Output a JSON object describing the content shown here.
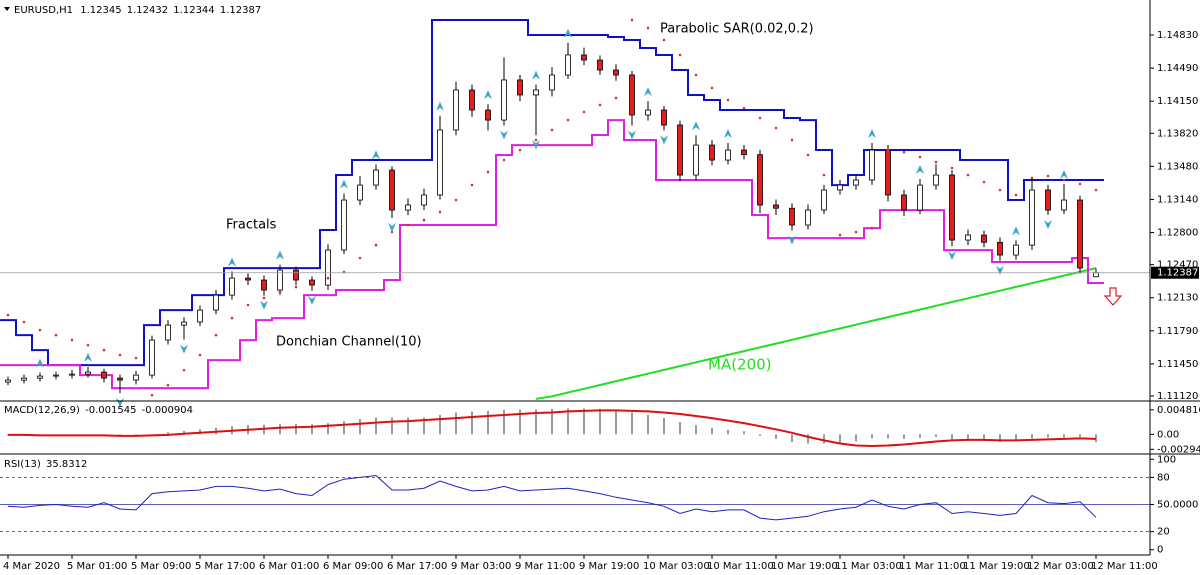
{
  "chart_data": [
    {
      "type": "candlestick",
      "symbol": "EURUSD,H1",
      "x_labels": [
        "4 Mar 2020",
        "5 Mar 01:00",
        "5 Mar 09:00",
        "5 Mar 17:00",
        "6 Mar 01:00",
        "6 Mar 09:00",
        "6 Mar 17:00",
        "9 Mar 03:00",
        "9 Mar 11:00",
        "9 Mar 19:00",
        "10 Mar 03:00",
        "10 Mar 11:00",
        "10 Mar 19:00",
        "11 Mar 03:00",
        "11 Mar 11:00",
        "11 Mar 19:00",
        "12 Mar 03:00",
        "12 Mar 11:00"
      ],
      "candles": [
        [
          1.11264,
          1.1132,
          1.1123,
          1.11284
        ],
        [
          1.11284,
          1.1134,
          1.1125,
          1.11304
        ],
        [
          1.11304,
          1.1136,
          1.1127,
          1.11325
        ],
        [
          1.11325,
          1.1137,
          1.1129,
          1.11335
        ],
        [
          1.11335,
          1.1139,
          1.113,
          1.11345
        ],
        [
          1.11345,
          1.1142,
          1.1131,
          1.11366
        ],
        [
          1.11366,
          1.114,
          1.1126,
          1.11304
        ],
        [
          1.11304,
          1.1134,
          1.1115,
          1.11284
        ],
        [
          1.11284,
          1.1138,
          1.1124,
          1.11335
        ],
        [
          1.11335,
          1.1174,
          1.113,
          1.11695
        ],
        [
          1.11695,
          1.119,
          1.1165,
          1.11849
        ],
        [
          1.11849,
          1.1193,
          1.117,
          1.1188
        ],
        [
          1.1188,
          1.1205,
          1.1184,
          1.12003
        ],
        [
          1.12003,
          1.1221,
          1.1196,
          1.12157
        ],
        [
          1.12157,
          1.124,
          1.1211,
          1.12332
        ],
        [
          1.12332,
          1.1238,
          1.1226,
          1.12312
        ],
        [
          1.12312,
          1.1236,
          1.1215,
          1.12209
        ],
        [
          1.12209,
          1.1247,
          1.1216,
          1.12414
        ],
        [
          1.12414,
          1.1245,
          1.1226,
          1.12312
        ],
        [
          1.12312,
          1.1235,
          1.122,
          1.1226
        ],
        [
          1.1226,
          1.1268,
          1.1221,
          1.1262
        ],
        [
          1.1262,
          1.132,
          1.1258,
          1.13134
        ],
        [
          1.13134,
          1.1338,
          1.1308,
          1.13288
        ],
        [
          1.13288,
          1.135,
          1.1324,
          1.13442
        ],
        [
          1.13442,
          1.1348,
          1.1295,
          1.13031
        ],
        [
          1.13031,
          1.1315,
          1.1298,
          1.13083
        ],
        [
          1.13083,
          1.1325,
          1.1303,
          1.13186
        ],
        [
          1.13186,
          1.14,
          1.1314,
          1.13854
        ],
        [
          1.13854,
          1.1435,
          1.138,
          1.14265
        ],
        [
          1.14265,
          1.1432,
          1.1399,
          1.14059
        ],
        [
          1.14059,
          1.1412,
          1.1385,
          1.13956
        ],
        [
          1.13956,
          1.146,
          1.139,
          1.14368
        ],
        [
          1.14368,
          1.1442,
          1.1415,
          1.14214
        ],
        [
          1.14214,
          1.1432,
          1.138,
          1.14265
        ],
        [
          1.14265,
          1.145,
          1.142,
          1.14419
        ],
        [
          1.14419,
          1.1475,
          1.1438,
          1.14625
        ],
        [
          1.14625,
          1.147,
          1.1452,
          1.14573
        ],
        [
          1.14573,
          1.1462,
          1.1442,
          1.1447
        ],
        [
          1.1447,
          1.1453,
          1.1436,
          1.14419
        ],
        [
          1.14419,
          1.1446,
          1.139,
          1.14008
        ],
        [
          1.14008,
          1.1415,
          1.1395,
          1.14059
        ],
        [
          1.14059,
          1.141,
          1.1385,
          1.13905
        ],
        [
          1.13905,
          1.1395,
          1.1333,
          1.13391
        ],
        [
          1.13391,
          1.138,
          1.1334,
          1.13699
        ],
        [
          1.13699,
          1.1375,
          1.1349,
          1.13545
        ],
        [
          1.13545,
          1.1372,
          1.135,
          1.13648
        ],
        [
          1.13648,
          1.137,
          1.1355,
          1.136
        ],
        [
          1.136,
          1.1365,
          1.13,
          1.13083
        ],
        [
          1.13083,
          1.1314,
          1.1298,
          1.1305
        ],
        [
          1.1305,
          1.131,
          1.1282,
          1.12877
        ],
        [
          1.12877,
          1.1309,
          1.1283,
          1.13031
        ],
        [
          1.13031,
          1.1329,
          1.1299,
          1.13237
        ],
        [
          1.13237,
          1.1334,
          1.1319,
          1.13288
        ],
        [
          1.13288,
          1.1339,
          1.1324,
          1.1334
        ],
        [
          1.1334,
          1.1372,
          1.1329,
          1.13648
        ],
        [
          1.13648,
          1.137,
          1.1312,
          1.13186
        ],
        [
          1.13186,
          1.1324,
          1.1297,
          1.13031
        ],
        [
          1.13031,
          1.1335,
          1.1299,
          1.13288
        ],
        [
          1.13288,
          1.135,
          1.1324,
          1.13391
        ],
        [
          1.13391,
          1.1344,
          1.1266,
          1.12723
        ],
        [
          1.12723,
          1.1283,
          1.1267,
          1.12774
        ],
        [
          1.12774,
          1.1282,
          1.1265,
          1.127
        ],
        [
          1.127,
          1.1275,
          1.1251,
          1.12569
        ],
        [
          1.12569,
          1.1272,
          1.1252,
          1.12671
        ],
        [
          1.12671,
          1.1335,
          1.1262,
          1.13237
        ],
        [
          1.13237,
          1.1329,
          1.1298,
          1.13031
        ],
        [
          1.13031,
          1.133,
          1.1299,
          1.13134
        ],
        [
          1.13134,
          1.1318,
          1.1238,
          1.12435
        ],
        [
          1.12345,
          1.12432,
          1.12344,
          1.12387
        ]
      ],
      "up_color": "#ffffff",
      "down_color": "#e02020",
      "ylim": [
        1.11079,
        1.15159
      ],
      "yticks": [
        {
          "value": 1.1483,
          "label": "1.14830"
        },
        {
          "value": 1.1449,
          "label": "1.14490"
        },
        {
          "value": 1.1415,
          "label": "1.14150"
        },
        {
          "value": 1.1382,
          "label": "1.13820"
        },
        {
          "value": 1.1348,
          "label": "1.13480"
        },
        {
          "value": 1.1314,
          "label": "1.13140"
        },
        {
          "value": 1.128,
          "label": "1.12800"
        },
        {
          "value": 1.1247,
          "label": "1.12470"
        },
        {
          "value": 1.1213,
          "label": "1.12130"
        },
        {
          "value": 1.1179,
          "label": "1.11790"
        },
        {
          "value": 1.1145,
          "label": "1.11450"
        },
        {
          "value": 1.1112,
          "label": "1.11120"
        }
      ],
      "ma": {
        "name": "MA(200)",
        "color": "#22dd22",
        "values": [
          null,
          null,
          null,
          null,
          null,
          null,
          null,
          null,
          null,
          null,
          null,
          null,
          null,
          null,
          null,
          null,
          null,
          null,
          null,
          null,
          null,
          null,
          null,
          null,
          null,
          null,
          null,
          null,
          null,
          null,
          null,
          null,
          null,
          1.1109,
          1.11117,
          1.11156,
          1.11194,
          1.11233,
          1.11272,
          1.11311,
          1.11349,
          1.11388,
          1.11427,
          1.11466,
          1.11504,
          1.11543,
          1.11582,
          1.11621,
          1.11659,
          1.11698,
          1.11737,
          1.11776,
          1.11814,
          1.11853,
          1.11892,
          1.11931,
          1.11969,
          1.12008,
          1.12047,
          1.12086,
          1.12124,
          1.12163,
          1.12202,
          1.12241,
          1.12279,
          1.12318,
          1.12357,
          1.12396,
          1.12435
        ]
      },
      "donchian": {
        "name": "Donchian Channel(10)",
        "upper_color": "#1010c8",
        "lower_color": "#e020e0",
        "upper": [
          1.119,
          1.11746,
          1.11592,
          1.11438,
          1.11438,
          1.11438,
          1.11438,
          1.11438,
          1.11438,
          1.11849,
          1.12003,
          1.12003,
          1.12157,
          1.12157,
          1.12435,
          1.12435,
          1.12435,
          1.12435,
          1.12435,
          1.12435,
          1.12826,
          1.13391,
          1.13545,
          1.13545,
          1.13545,
          1.13545,
          1.13545,
          1.14984,
          1.14984,
          1.14984,
          1.14984,
          1.14984,
          1.14984,
          1.1483,
          1.1483,
          1.1483,
          1.1483,
          1.1483,
          1.1481,
          1.14779,
          1.14697,
          1.14625,
          1.1447,
          1.14214,
          1.14162,
          1.14059,
          1.14059,
          1.14059,
          1.14059,
          1.13977,
          1.13956,
          1.13648,
          1.13288,
          1.13391,
          1.13648,
          1.13648,
          1.13648,
          1.13648,
          1.13648,
          1.13648,
          1.13545,
          1.13545,
          1.13545,
          1.13134,
          1.1334,
          1.1334,
          1.1334,
          1.1334,
          1.1334
        ],
        "lower": [
          1.11438,
          1.11438,
          1.11438,
          1.11438,
          1.11438,
          1.11335,
          1.11335,
          1.11201,
          1.11201,
          1.11201,
          1.11201,
          1.11201,
          1.11201,
          1.11489,
          1.11489,
          1.11695,
          1.119,
          1.11921,
          1.11921,
          1.12157,
          1.12157,
          1.12209,
          1.12209,
          1.12209,
          1.12312,
          1.12877,
          1.12877,
          1.12877,
          1.12877,
          1.12877,
          1.12877,
          1.13597,
          1.13699,
          1.13699,
          1.13699,
          1.13699,
          1.13699,
          1.13802,
          1.13956,
          1.13751,
          1.13751,
          1.1334,
          1.1334,
          1.1334,
          1.1334,
          1.1334,
          1.1334,
          1.1298,
          1.12743,
          1.12743,
          1.12743,
          1.12743,
          1.12743,
          1.12743,
          1.12846,
          1.13031,
          1.13031,
          1.13031,
          1.13031,
          1.1262,
          1.1262,
          1.1262,
          1.12497,
          1.12497,
          1.12497,
          1.12497,
          1.12497,
          1.12538,
          1.12281
        ]
      },
      "sar": {
        "name": "Parabolic SAR(0.02,0.2)",
        "color": "#e03030",
        "values": [
          1.11952,
          1.1188,
          1.11798,
          1.11746,
          1.11695,
          1.11643,
          1.11592,
          1.11541,
          1.1151,
          1.11129,
          1.11232,
          1.11386,
          1.11541,
          1.11746,
          1.11921,
          1.12055,
          1.12127,
          1.12188,
          1.1224,
          1.12291,
          1.12332,
          1.12394,
          1.12538,
          1.12671,
          1.12805,
          1.12877,
          1.12928,
          1.13011,
          1.13134,
          1.13288,
          1.13422,
          1.13545,
          1.13648,
          1.13751,
          1.13854,
          1.13956,
          1.14039,
          1.14111,
          1.14183,
          1.14984,
          1.14902,
          1.14779,
          1.14625,
          1.14419,
          1.14286,
          1.14162,
          1.1408,
          1.13977,
          1.13874,
          1.13751,
          1.13597,
          1.13391,
          1.12774,
          1.12805,
          1.12846,
          1.13648,
          1.13627,
          1.13576,
          1.13525,
          1.13463,
          1.13391,
          1.13319,
          1.13237,
          1.13186,
          1.1336,
          1.13381,
          1.1334,
          1.13299,
          1.13237
        ]
      },
      "fractals": {
        "name": "Fractals",
        "color": "#3aa6c8",
        "up": {
          "x": [
            2,
            5,
            14,
            17,
            21,
            23,
            27,
            30,
            33,
            35,
            40,
            43,
            45,
            54,
            57,
            63,
            66
          ],
          "values": [
            1.1136,
            1.1142,
            1.124,
            1.1247,
            1.132,
            1.135,
            1.14,
            1.1412,
            1.1432,
            1.1475,
            1.1415,
            1.138,
            1.1372,
            1.1372,
            1.1335,
            1.1272,
            1.133
          ]
        },
        "down": {
          "x": [
            7,
            11,
            16,
            19,
            24,
            31,
            33,
            39,
            41,
            49,
            59,
            62,
            65
          ],
          "values": [
            1.1115,
            1.117,
            1.1215,
            1.122,
            1.1295,
            1.139,
            1.138,
            1.139,
            1.1385,
            1.1282,
            1.1266,
            1.1251,
            1.1298
          ]
        }
      }
    },
    {
      "type": "bar",
      "title": "MACD(12,26,9)",
      "ylim": [
        -0.00347,
        0.00616
      ],
      "yticks": [
        0.004816,
        {
          "value": 0,
          "label": "0.00"
        },
        -0.002942
      ],
      "histogram": {
        "color": "#333333",
        "values": [
          -0.0002,
          -0.0002,
          -0.0003,
          -0.0003,
          -0.0002,
          -0.0002,
          -0.0003,
          -0.0004,
          -0.0004,
          0,
          0.0004,
          0.0007,
          0.001,
          0.0013,
          0.0016,
          0.0018,
          0.0019,
          0.002,
          0.002,
          0.002,
          0.0022,
          0.0026,
          0.003,
          0.0033,
          0.0033,
          0.0033,
          0.0033,
          0.0038,
          0.0043,
          0.0045,
          0.0046,
          0.0048,
          0.0049,
          0.0049,
          0.005,
          0.0051,
          0.0051,
          0.005,
          0.0048,
          0.0043,
          0.0038,
          0.0032,
          0.0024,
          0.0018,
          0.0013,
          0.0009,
          0.0006,
          -0.0003,
          -0.0009,
          -0.0015,
          -0.0018,
          -0.0018,
          -0.0016,
          -0.0014,
          -0.0008,
          -0.0008,
          -0.0009,
          -0.0007,
          -0.0005,
          -0.001,
          -0.0012,
          -0.0013,
          -0.0015,
          -0.0014,
          -0.0008,
          -0.0006,
          -0.0006,
          -0.0005,
          -0.001545
        ]
      },
      "signal": {
        "color": "#dd1010",
        "values": [
          -0.0001,
          -0.0001,
          -0.0002,
          -0.0002,
          -0.0002,
          -0.0002,
          -0.0002,
          -0.0003,
          -0.0003,
          -0.0002,
          -0.0001,
          0.0001,
          0.0003,
          0.0005,
          0.0007,
          0.0009,
          0.0011,
          0.0013,
          0.0014,
          0.0015,
          0.0017,
          0.0019,
          0.0021,
          0.0023,
          0.0025,
          0.0026,
          0.0028,
          0.003,
          0.0032,
          0.0034,
          0.0036,
          0.0038,
          0.004,
          0.0042,
          0.0043,
          0.0045,
          0.0046,
          0.0047,
          0.0047,
          0.0046,
          0.0045,
          0.0043,
          0.004,
          0.0036,
          0.0032,
          0.0027,
          0.0022,
          0.0016,
          0.001,
          0.0003,
          -0.0005,
          -0.0012,
          -0.0018,
          -0.0022,
          -0.0023,
          -0.0022,
          -0.002,
          -0.0017,
          -0.0014,
          -0.0012,
          -0.0011,
          -0.0011,
          -0.0012,
          -0.0012,
          -0.0011,
          -0.001,
          -0.0009,
          -0.0008,
          -0.000904
        ]
      }
    },
    {
      "type": "line",
      "title": "RSI(13)",
      "ylim": [
        -3.6,
        103.6
      ],
      "yticks": [
        100,
        80,
        {
          "value": 50,
          "label": "50.0000"
        },
        20,
        0
      ],
      "levels": [
        80,
        50,
        20
      ],
      "color": "#2020c0",
      "values": [
        48,
        47,
        49,
        50,
        48,
        47,
        52,
        45,
        44,
        62,
        64,
        65,
        66,
        70,
        70,
        68,
        65,
        67,
        62,
        60,
        72,
        78,
        80,
        82,
        66,
        66,
        68,
        76,
        70,
        65,
        66,
        70,
        65,
        66,
        67,
        68,
        65,
        62,
        58,
        55,
        52,
        48,
        40,
        45,
        42,
        44,
        44,
        35,
        33,
        35,
        37,
        42,
        45,
        47,
        55,
        48,
        45,
        50,
        52,
        40,
        42,
        40,
        38,
        40,
        60,
        52,
        51,
        53,
        35.8312
      ]
    }
  ]
}
